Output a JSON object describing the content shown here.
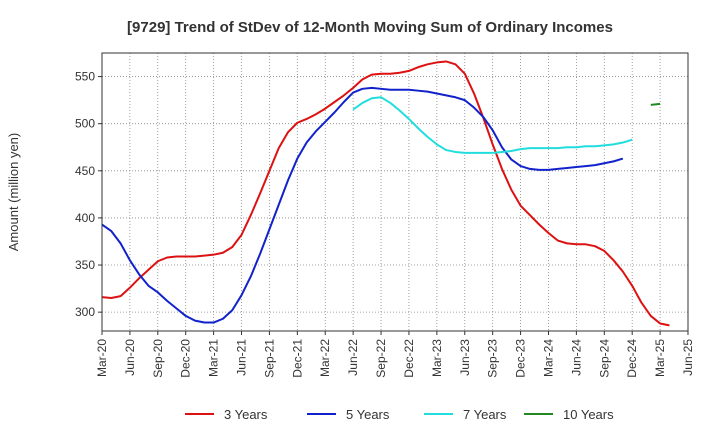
{
  "chart_data": {
    "type": "line",
    "title": "[9729]  Trend of StDev of 12-Month Moving Sum of Ordinary Incomes",
    "xlabel": "",
    "ylabel": "Amount (million yen)",
    "ylim": [
      280,
      575
    ],
    "yticks": [
      300,
      350,
      400,
      450,
      500,
      550
    ],
    "x_ticks": [
      "Mar-20",
      "Jun-20",
      "Sep-20",
      "Dec-20",
      "Mar-21",
      "Jun-21",
      "Sep-21",
      "Dec-21",
      "Mar-22",
      "Jun-22",
      "Sep-22",
      "Dec-22",
      "Mar-23",
      "Jun-23",
      "Sep-23",
      "Dec-23",
      "Mar-24",
      "Jun-24",
      "Sep-24",
      "Dec-24",
      "Mar-25",
      "Jun-25"
    ],
    "grid": true,
    "legend_position": "bottom",
    "series": [
      {
        "name": "3 Years",
        "color": "#dd1111",
        "points": [
          [
            0,
            316
          ],
          [
            1,
            315
          ],
          [
            2,
            317
          ],
          [
            3,
            326
          ],
          [
            4,
            336
          ],
          [
            5,
            345
          ],
          [
            6,
            354
          ],
          [
            7,
            358
          ],
          [
            8,
            359
          ],
          [
            9,
            359
          ],
          [
            10,
            359
          ],
          [
            11,
            360
          ],
          [
            12,
            361
          ],
          [
            13,
            363
          ],
          [
            14,
            369
          ],
          [
            15,
            382
          ],
          [
            16,
            403
          ],
          [
            17,
            426
          ],
          [
            18,
            450
          ],
          [
            19,
            474
          ],
          [
            20,
            491
          ],
          [
            21,
            501
          ],
          [
            22,
            505
          ],
          [
            23,
            510
          ],
          [
            24,
            516
          ],
          [
            25,
            523
          ],
          [
            26,
            530
          ],
          [
            27,
            538
          ],
          [
            28,
            547
          ],
          [
            29,
            552
          ],
          [
            30,
            553
          ],
          [
            31,
            553
          ],
          [
            32,
            554
          ],
          [
            33,
            556
          ],
          [
            34,
            560
          ],
          [
            35,
            563
          ],
          [
            36,
            565
          ],
          [
            37,
            566
          ],
          [
            38,
            563
          ],
          [
            39,
            553
          ],
          [
            40,
            532
          ],
          [
            41,
            506
          ],
          [
            42,
            478
          ],
          [
            43,
            452
          ],
          [
            44,
            430
          ],
          [
            45,
            413
          ],
          [
            46,
            403
          ],
          [
            47,
            393
          ],
          [
            48,
            384
          ],
          [
            49,
            376
          ],
          [
            50,
            373
          ],
          [
            51,
            372
          ],
          [
            52,
            372
          ],
          [
            53,
            370
          ],
          [
            54,
            365
          ],
          [
            55,
            355
          ],
          [
            56,
            343
          ],
          [
            57,
            328
          ],
          [
            58,
            310
          ],
          [
            59,
            296
          ],
          [
            60,
            288
          ],
          [
            61,
            286
          ]
        ]
      },
      {
        "name": "5 Years",
        "color": "#1122cc",
        "points": [
          [
            0,
            393
          ],
          [
            1,
            386
          ],
          [
            2,
            373
          ],
          [
            3,
            355
          ],
          [
            4,
            340
          ],
          [
            5,
            328
          ],
          [
            6,
            321
          ],
          [
            7,
            312
          ],
          [
            8,
            304
          ],
          [
            9,
            296
          ],
          [
            10,
            291
          ],
          [
            11,
            289
          ],
          [
            12,
            289
          ],
          [
            13,
            293
          ],
          [
            14,
            302
          ],
          [
            15,
            318
          ],
          [
            16,
            338
          ],
          [
            17,
            362
          ],
          [
            18,
            388
          ],
          [
            19,
            414
          ],
          [
            20,
            440
          ],
          [
            21,
            463
          ],
          [
            22,
            480
          ],
          [
            23,
            492
          ],
          [
            24,
            502
          ],
          [
            25,
            512
          ],
          [
            26,
            523
          ],
          [
            27,
            533
          ],
          [
            28,
            537
          ],
          [
            29,
            538
          ],
          [
            30,
            537
          ],
          [
            31,
            536
          ],
          [
            32,
            536
          ],
          [
            33,
            536
          ],
          [
            34,
            535
          ],
          [
            35,
            534
          ],
          [
            36,
            532
          ],
          [
            37,
            530
          ],
          [
            38,
            528
          ],
          [
            39,
            525
          ],
          [
            40,
            517
          ],
          [
            41,
            507
          ],
          [
            42,
            493
          ],
          [
            43,
            475
          ],
          [
            44,
            462
          ],
          [
            45,
            455
          ],
          [
            46,
            452
          ],
          [
            47,
            451
          ],
          [
            48,
            451
          ],
          [
            49,
            452
          ],
          [
            50,
            453
          ],
          [
            51,
            454
          ],
          [
            52,
            455
          ],
          [
            53,
            456
          ],
          [
            54,
            458
          ],
          [
            55,
            460
          ],
          [
            56,
            463
          ]
        ]
      },
      {
        "name": "7 Years",
        "color": "#22dddd",
        "points": [
          [
            0,
            null
          ],
          [
            1,
            null
          ],
          [
            2,
            null
          ],
          [
            3,
            null
          ],
          [
            4,
            null
          ],
          [
            5,
            null
          ],
          [
            6,
            null
          ],
          [
            7,
            null
          ],
          [
            8,
            null
          ],
          [
            9,
            null
          ],
          [
            10,
            null
          ],
          [
            11,
            null
          ],
          [
            12,
            null
          ],
          [
            13,
            null
          ],
          [
            14,
            null
          ],
          [
            15,
            null
          ],
          [
            16,
            null
          ],
          [
            17,
            null
          ],
          [
            18,
            null
          ],
          [
            19,
            null
          ],
          [
            20,
            null
          ],
          [
            21,
            null
          ],
          [
            22,
            null
          ],
          [
            23,
            null
          ],
          [
            24,
            null
          ],
          [
            25,
            null
          ],
          [
            26,
            null
          ],
          [
            27,
            515
          ],
          [
            28,
            522
          ],
          [
            29,
            527
          ],
          [
            30,
            528
          ],
          [
            31,
            522
          ],
          [
            32,
            514
          ],
          [
            33,
            505
          ],
          [
            34,
            495
          ],
          [
            35,
            486
          ],
          [
            36,
            478
          ],
          [
            37,
            472
          ],
          [
            38,
            470
          ],
          [
            39,
            469
          ],
          [
            40,
            469
          ],
          [
            41,
            469
          ],
          [
            42,
            469
          ],
          [
            43,
            470
          ],
          [
            44,
            471
          ],
          [
            45,
            473
          ],
          [
            46,
            474
          ],
          [
            47,
            474
          ],
          [
            48,
            474
          ],
          [
            49,
            474
          ],
          [
            50,
            475
          ],
          [
            51,
            475
          ],
          [
            52,
            476
          ],
          [
            53,
            476
          ],
          [
            54,
            477
          ],
          [
            55,
            478
          ],
          [
            56,
            480
          ],
          [
            57,
            483
          ]
        ]
      },
      {
        "name": "10 Years",
        "color": "#228822",
        "points": [
          [
            59,
            520
          ],
          [
            60,
            521
          ]
        ]
      }
    ]
  }
}
